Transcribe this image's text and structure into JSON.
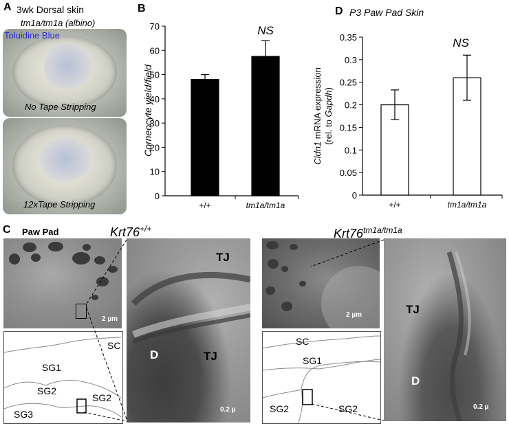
{
  "panel_a": {
    "label": "A",
    "title": "3wk Dorsal skin",
    "genotype": "tm1a/tm1a (albino)",
    "stain": "Toluidine Blue",
    "stain_color": "#2b2bd6",
    "caption_top": "No Tape Stripping",
    "caption_bottom": "12xTape Stripping"
  },
  "panel_b": {
    "label": "B",
    "ylabel": "Corneocyte yield/field",
    "significance": "NS"
  },
  "panel_c": {
    "label": "C",
    "title": "Paw Pad",
    "wt_label_base": "Krt76",
    "wt_label_sup": "+/+",
    "ko_label_base": "Krt76",
    "ko_label_sup": "tm1a/tm1a",
    "scale_2um": "2 µm",
    "scale_02_wt": "0.2 µ",
    "scale_02_ko": "0.2 µ",
    "wt_regions": [
      "SC",
      "SG1",
      "SG2",
      "SG2",
      "SG3"
    ],
    "ko_regions": [
      "SC",
      "SG1",
      "SG2",
      "SG2"
    ],
    "wt_zoom_labels": [
      "TJ",
      "D",
      "TJ"
    ],
    "ko_zoom_labels": [
      "TJ",
      "D"
    ]
  },
  "panel_d": {
    "label": "D",
    "title": "P3 Paw Pad Skin",
    "ylabel_gene": "Cldn1",
    "ylabel_rest": " mRNA expression",
    "ylabel_line2_pre": "(rel. to ",
    "ylabel_line2_gene": "Gapdh",
    "ylabel_line2_post": ")",
    "significance": "NS"
  },
  "chart_data": [
    {
      "type": "bar",
      "panel": "B",
      "categories": [
        "+/+",
        "tm1a/tm1a"
      ],
      "values": [
        48,
        57.5
      ],
      "errors": [
        2,
        6.5
      ],
      "ylabel": "Corneocyte yield/field",
      "ylim": [
        0,
        70
      ],
      "yticks": [
        0,
        10,
        20,
        30,
        40,
        50,
        60,
        70
      ],
      "bar_color": "#000000",
      "annotation": "NS"
    },
    {
      "type": "bar",
      "panel": "D",
      "categories": [
        "+/+",
        "tm1a/tm1a"
      ],
      "values": [
        0.2,
        0.26
      ],
      "errors": [
        0.033,
        0.05
      ],
      "ylabel": "Cldn1 mRNA expression (rel. to Gapdh)",
      "ylim": [
        0,
        0.35
      ],
      "yticks": [
        "0",
        "0.05",
        "0.1",
        "0.15",
        "0.2",
        "0.25",
        "0.3",
        "0.35"
      ],
      "bar_color": "#ffffff",
      "annotation": "NS"
    }
  ]
}
